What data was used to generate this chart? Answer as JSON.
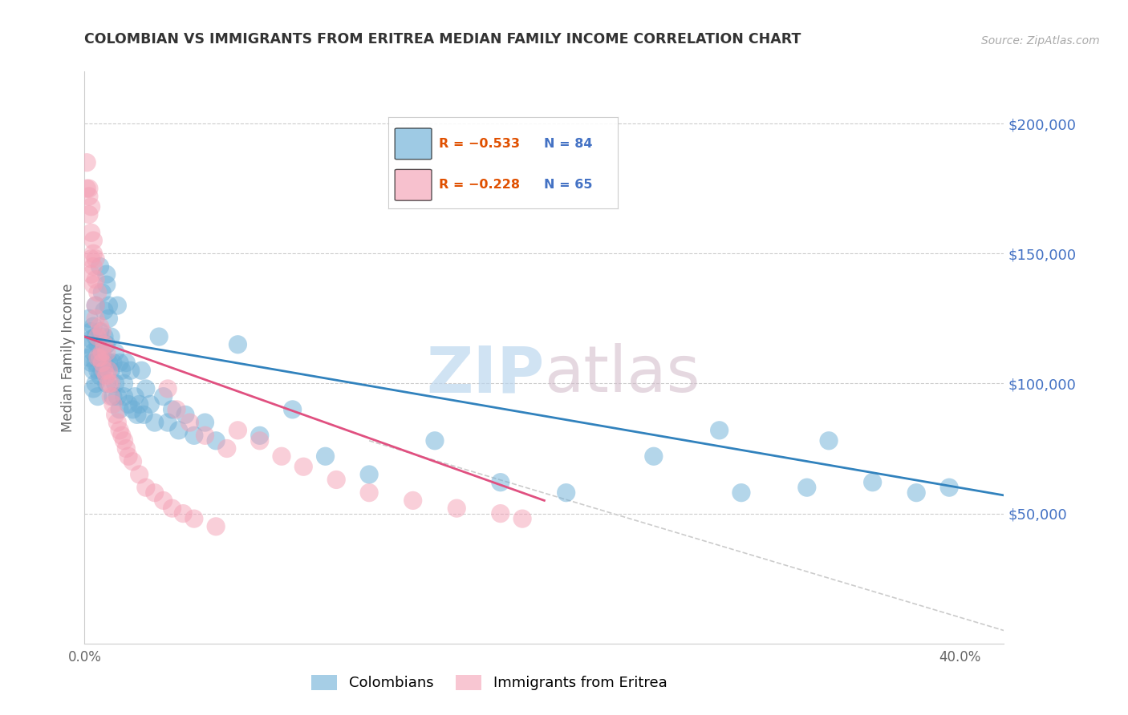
{
  "title": "COLOMBIAN VS IMMIGRANTS FROM ERITREA MEDIAN FAMILY INCOME CORRELATION CHART",
  "source": "Source: ZipAtlas.com",
  "ylabel": "Median Family Income",
  "right_yticks": [
    50000,
    100000,
    150000,
    200000
  ],
  "right_ytick_labels": [
    "$50,000",
    "$100,000",
    "$150,000",
    "$200,000"
  ],
  "blue_color": "#6baed6",
  "pink_color": "#f4a0b5",
  "trendline_blue": "#3182bd",
  "trendline_pink": "#e05080",
  "trendline_gray": "#cccccc",
  "blue_label": "Colombians",
  "pink_label": "Immigrants from Eritrea",
  "legend_blue_r": "R = −0.533",
  "legend_blue_n": "N = 84",
  "legend_pink_r": "R = −0.228",
  "legend_pink_n": "N = 65",
  "blue_scatter_x": [
    0.001,
    0.002,
    0.002,
    0.003,
    0.003,
    0.003,
    0.004,
    0.004,
    0.004,
    0.004,
    0.005,
    0.005,
    0.005,
    0.005,
    0.006,
    0.006,
    0.006,
    0.007,
    0.007,
    0.007,
    0.007,
    0.008,
    0.008,
    0.008,
    0.009,
    0.009,
    0.009,
    0.01,
    0.01,
    0.01,
    0.01,
    0.011,
    0.011,
    0.011,
    0.012,
    0.012,
    0.013,
    0.013,
    0.014,
    0.014,
    0.015,
    0.015,
    0.016,
    0.016,
    0.017,
    0.018,
    0.018,
    0.019,
    0.02,
    0.021,
    0.022,
    0.023,
    0.024,
    0.025,
    0.026,
    0.027,
    0.028,
    0.03,
    0.032,
    0.034,
    0.036,
    0.038,
    0.04,
    0.043,
    0.046,
    0.05,
    0.055,
    0.06,
    0.07,
    0.08,
    0.095,
    0.11,
    0.13,
    0.16,
    0.19,
    0.22,
    0.26,
    0.3,
    0.34,
    0.38,
    0.29,
    0.33,
    0.36,
    0.395
  ],
  "blue_scatter_y": [
    115000,
    110000,
    125000,
    120000,
    108000,
    117000,
    122000,
    112000,
    105000,
    98000,
    118000,
    108000,
    100000,
    130000,
    115000,
    105000,
    95000,
    120000,
    110000,
    103000,
    145000,
    135000,
    112000,
    105000,
    128000,
    108000,
    118000,
    138000,
    100000,
    142000,
    115000,
    125000,
    108000,
    130000,
    105000,
    118000,
    95000,
    108000,
    100000,
    112000,
    95000,
    130000,
    108000,
    90000,
    105000,
    100000,
    95000,
    108000,
    92000,
    105000,
    90000,
    95000,
    88000,
    92000,
    105000,
    88000,
    98000,
    92000,
    85000,
    118000,
    95000,
    85000,
    90000,
    82000,
    88000,
    80000,
    85000,
    78000,
    115000,
    80000,
    90000,
    72000,
    65000,
    78000,
    62000,
    58000,
    72000,
    58000,
    78000,
    58000,
    82000,
    60000,
    62000,
    60000
  ],
  "pink_scatter_x": [
    0.001,
    0.001,
    0.002,
    0.002,
    0.002,
    0.003,
    0.003,
    0.003,
    0.003,
    0.004,
    0.004,
    0.004,
    0.004,
    0.005,
    0.005,
    0.005,
    0.005,
    0.006,
    0.006,
    0.006,
    0.007,
    0.007,
    0.008,
    0.008,
    0.008,
    0.009,
    0.009,
    0.01,
    0.01,
    0.011,
    0.011,
    0.012,
    0.012,
    0.013,
    0.014,
    0.015,
    0.016,
    0.017,
    0.018,
    0.019,
    0.02,
    0.022,
    0.025,
    0.028,
    0.032,
    0.036,
    0.04,
    0.045,
    0.05,
    0.06,
    0.07,
    0.08,
    0.09,
    0.1,
    0.115,
    0.13,
    0.15,
    0.17,
    0.19,
    0.2,
    0.038,
    0.042,
    0.048,
    0.055,
    0.065
  ],
  "pink_scatter_y": [
    185000,
    175000,
    175000,
    165000,
    172000,
    168000,
    158000,
    148000,
    142000,
    155000,
    145000,
    150000,
    138000,
    148000,
    140000,
    130000,
    125000,
    135000,
    118000,
    110000,
    122000,
    110000,
    120000,
    112000,
    108000,
    115000,
    105000,
    112000,
    103000,
    105000,
    100000,
    100000,
    95000,
    92000,
    88000,
    85000,
    82000,
    80000,
    78000,
    75000,
    72000,
    70000,
    65000,
    60000,
    58000,
    55000,
    52000,
    50000,
    48000,
    45000,
    82000,
    78000,
    72000,
    68000,
    63000,
    58000,
    55000,
    52000,
    50000,
    48000,
    98000,
    90000,
    85000,
    80000,
    75000
  ],
  "xlim": [
    0.0,
    0.42
  ],
  "ylim": [
    0,
    220000
  ],
  "blue_trend": [
    0.0,
    0.42,
    118000,
    57000
  ],
  "pink_trend": [
    0.0,
    0.21,
    118000,
    55000
  ],
  "gray_trend": [
    0.13,
    0.42,
    78000,
    5000
  ]
}
